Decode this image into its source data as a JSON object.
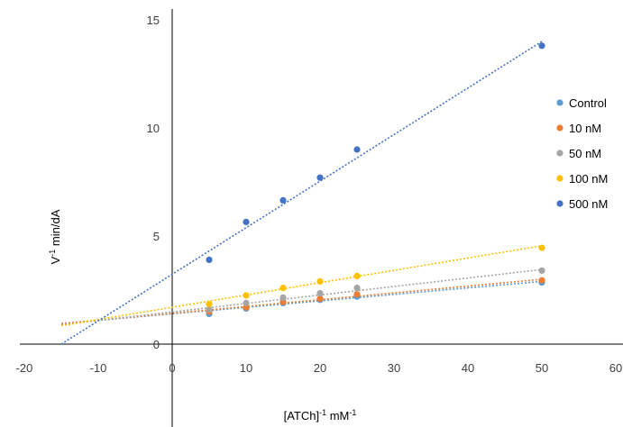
{
  "chart_data": {
    "type": "scatter",
    "title": "",
    "xlabel": "[ATCh]",
    "xlabel_sup1": "-1",
    "xlabel_unit": " mM",
    "xlabel_sup2": "-1",
    "ylabel": "V",
    "ylabel_sup": "-1",
    "ylabel_unit": " min/dA",
    "xlim": [
      -20,
      60
    ],
    "ylim": [
      0,
      15
    ],
    "x_ticks": [
      -20,
      -10,
      0,
      10,
      20,
      30,
      40,
      50,
      60
    ],
    "y_ticks": [
      0,
      5,
      10,
      15
    ],
    "grid": false,
    "legend_position": "right",
    "series": [
      {
        "name": "Control",
        "color": "#5B9BD5",
        "x": [
          5,
          10,
          15,
          20,
          25,
          50
        ],
        "y": [
          1.4,
          1.65,
          1.9,
          2.05,
          2.2,
          2.85
        ],
        "trend": [
          [
            -15,
            0.95
          ],
          [
            50,
            2.9
          ]
        ]
      },
      {
        "name": "10 nM",
        "color": "#ED7D31",
        "x": [
          5,
          10,
          15,
          20,
          25,
          50
        ],
        "y": [
          1.5,
          1.7,
          1.95,
          2.1,
          2.3,
          2.95
        ],
        "trend": [
          [
            -15,
            0.95
          ],
          [
            50,
            3.0
          ]
        ]
      },
      {
        "name": "50 nM",
        "color": "#A5A5A5",
        "x": [
          5,
          10,
          15,
          20,
          25,
          50
        ],
        "y": [
          1.6,
          1.9,
          2.15,
          2.35,
          2.6,
          3.4
        ],
        "trend": [
          [
            -15,
            0.9
          ],
          [
            50,
            3.45
          ]
        ]
      },
      {
        "name": "100 nM",
        "color": "#FFC000",
        "x": [
          5,
          10,
          15,
          20,
          25,
          50
        ],
        "y": [
          1.85,
          2.25,
          2.6,
          2.9,
          3.15,
          4.45
        ],
        "trend": [
          [
            -15,
            0.85
          ],
          [
            50,
            4.55
          ]
        ]
      },
      {
        "name": "500 nM",
        "color": "#4472C4",
        "x": [
          5,
          10,
          15,
          20,
          25,
          50
        ],
        "y": [
          3.9,
          5.65,
          6.65,
          7.7,
          9.0,
          13.8
        ],
        "trend": [
          [
            -15,
            0.0
          ],
          [
            50,
            14.0
          ]
        ]
      }
    ]
  }
}
